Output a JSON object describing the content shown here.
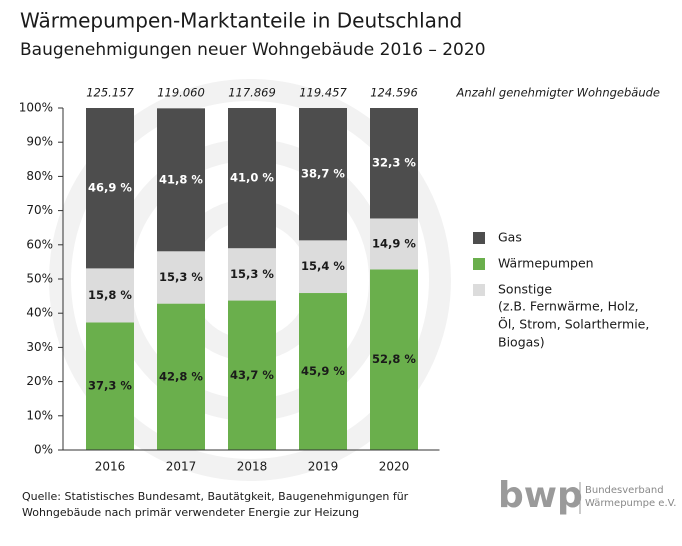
{
  "chart_data": {
    "type": "stacked_bar",
    "title": "Wärmepumpen-Marktanteile in Deutschland",
    "subtitle": "Baugenehmigungen neuer Wohngebäude 2016 – 2020",
    "categories": [
      "2016",
      "2017",
      "2018",
      "2019",
      "2020"
    ],
    "series": [
      {
        "name": "Gas",
        "color": "#4d4d4d",
        "values": [
          46.9,
          41.8,
          41.0,
          38.7,
          32.3
        ],
        "value_labels": [
          "46,9 %",
          "41,8 %",
          "41,0 %",
          "38,7 %",
          "32,3 %"
        ]
      },
      {
        "name": "Wärmepumpen",
        "color": "#6aaf4c",
        "values": [
          37.3,
          42.8,
          43.7,
          45.9,
          52.8
        ],
        "value_labels": [
          "37,3 %",
          "42,8 %",
          "43,7 %",
          "45,9 %",
          "52,8 %"
        ]
      },
      {
        "name": "Sonstige",
        "color": "#dcdcdc",
        "values": [
          15.8,
          15.3,
          15.3,
          15.4,
          14.9
        ],
        "value_labels": [
          "15,8 %",
          "15,3 %",
          "15,3 %",
          "15,4 %",
          "14,9 %"
        ]
      }
    ],
    "legend_note": [
      "(z.B. Fernwärme, Holz,",
      "Öl, Strom, Solarthermie,",
      "Biogas)"
    ],
    "totals": {
      "values": [
        125157,
        119060,
        117869,
        119457,
        124596
      ],
      "value_labels": [
        "125.157",
        "119.060",
        "117.869",
        "119.457",
        "124.596"
      ]
    },
    "totals_caption": "Anzahl genehmigter Wohngebäude",
    "ylim": [
      0,
      100
    ],
    "yticks": [
      {
        "value": 0,
        "label": "0%"
      },
      {
        "value": 10,
        "label": "10%"
      },
      {
        "value": 20,
        "label": "20%"
      },
      {
        "value": 30,
        "label": "30%"
      },
      {
        "value": 40,
        "label": "40%"
      },
      {
        "value": 50,
        "label": "50%"
      },
      {
        "value": 60,
        "label": "60%"
      },
      {
        "value": 70,
        "label": "70%"
      },
      {
        "value": 80,
        "label": "80%"
      },
      {
        "value": 90,
        "label": "90%"
      },
      {
        "value": 100,
        "label": "100%"
      }
    ],
    "source": [
      "Quelle: Statistisches Bundesamt, Bautätgkeit, Baugenehmigungen für",
      "Wohngebäude nach primär verwendeter Energie zur Heizung"
    ],
    "logo": {
      "mark": "bwp",
      "lines": [
        "Bundesverband",
        "Wärmepumpe e.V."
      ]
    }
  }
}
